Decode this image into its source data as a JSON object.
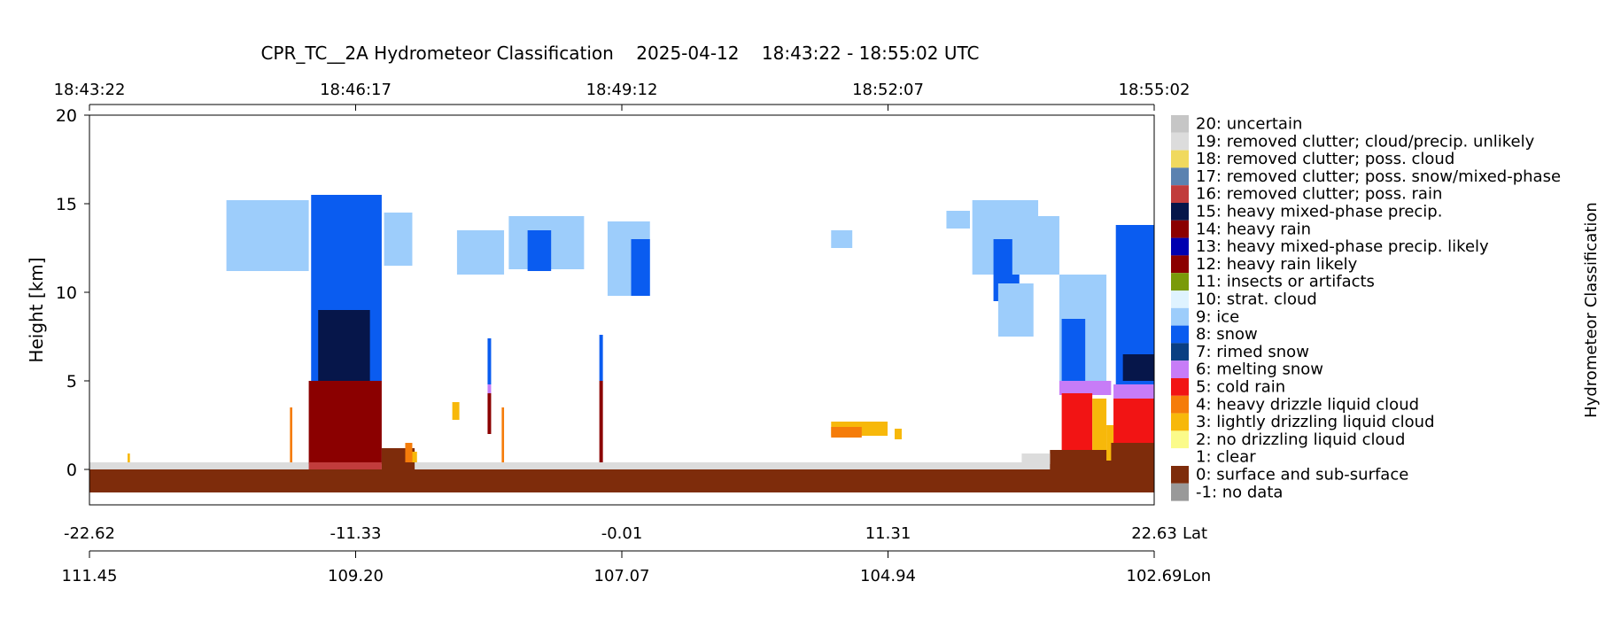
{
  "chart_data": {
    "type": "heatmap",
    "title": "CPR_TC__2A Hydrometeor Classification    2025-04-12    18:43:22 - 18:55:02 UTC",
    "ylabel": "Height [km]",
    "ylim": [
      -2,
      20
    ],
    "yticks": [
      0,
      5,
      10,
      15,
      20
    ],
    "top_axis": {
      "ticks": [
        "18:43:22",
        "18:46:17",
        "18:49:12",
        "18:52:07",
        "18:55:02"
      ]
    },
    "lat_axis": {
      "label": "Lat",
      "ticks": [
        "-22.62",
        "-11.33",
        "-0.01",
        "11.31",
        "22.63"
      ]
    },
    "lon_axis": {
      "label": "Lon",
      "ticks": [
        "111.45",
        "109.20",
        "107.07",
        "104.94",
        "102.69"
      ]
    },
    "colorbar_label": "Hydrometeor Classification",
    "x_range": [
      -22.62,
      22.63
    ],
    "classes": [
      {
        "code": 20,
        "label": "20: uncertain",
        "color": "#c6c6c6"
      },
      {
        "code": 19,
        "label": "19: removed clutter; cloud/precip. unlikely",
        "color": "#dcdcdc"
      },
      {
        "code": 18,
        "label": "18: removed clutter; poss. cloud",
        "color": "#f0d95e"
      },
      {
        "code": 17,
        "label": "17: removed clutter; poss. snow/mixed-phase",
        "color": "#5b82b0"
      },
      {
        "code": 16,
        "label": "16: removed clutter; poss. rain",
        "color": "#c13c3c"
      },
      {
        "code": 15,
        "label": "15: heavy mixed-phase precip.",
        "color": "#06164a"
      },
      {
        "code": 14,
        "label": "14: heavy rain",
        "color": "#8b0000"
      },
      {
        "code": 13,
        "label": "13: heavy mixed-phase precip. likely",
        "color": "#0000b0"
      },
      {
        "code": 12,
        "label": "12: heavy rain likely",
        "color": "#8b0000"
      },
      {
        "code": 11,
        "label": "11: insects or artifacts",
        "color": "#7a9a0a"
      },
      {
        "code": 10,
        "label": "10: strat. cloud",
        "color": "#dff3ff"
      },
      {
        "code": 9,
        "label": "9: ice",
        "color": "#9dcdfb"
      },
      {
        "code": 8,
        "label": "8: snow",
        "color": "#0a5cf0"
      },
      {
        "code": 7,
        "label": "7: rimed snow",
        "color": "#0a3f82"
      },
      {
        "code": 6,
        "label": "6: melting snow",
        "color": "#c77cf7"
      },
      {
        "code": 5,
        "label": "5: cold rain",
        "color": "#f21414"
      },
      {
        "code": 4,
        "label": "4: heavy drizzle liquid cloud",
        "color": "#f57c0a"
      },
      {
        "code": 3,
        "label": "3: lightly drizzling liquid cloud",
        "color": "#f7b80a"
      },
      {
        "code": 2,
        "label": "2: no drizzling liquid cloud",
        "color": "#fbfb8a"
      },
      {
        "code": 1,
        "label": "1: clear",
        "color": "#ffffff"
      },
      {
        "code": 0,
        "label": "0: surface and sub-surface",
        "color": "#7e2c0b"
      },
      {
        "code": -1,
        "label": "-1: no data",
        "color": "#999999"
      }
    ],
    "regions": [
      {
        "cls": 19,
        "x0": -22.62,
        "x1": 22.63,
        "y0": -0.2,
        "y1": 0.4
      },
      {
        "cls": 0,
        "x0": -22.62,
        "x1": 22.63,
        "y0": -1.3,
        "y1": 0.0
      },
      {
        "cls": 9,
        "x0": -16.8,
        "x1": -13.3,
        "y0": 11.2,
        "y1": 15.2
      },
      {
        "cls": 8,
        "x0": -13.2,
        "x1": -10.2,
        "y0": 5.0,
        "y1": 15.5
      },
      {
        "cls": 9,
        "x0": -10.1,
        "x1": -8.9,
        "y0": 11.5,
        "y1": 14.5
      },
      {
        "cls": 15,
        "x0": -12.9,
        "x1": -10.7,
        "y0": 5.0,
        "y1": 9.0
      },
      {
        "cls": 14,
        "x0": -13.3,
        "x1": -10.2,
        "y0": 0.3,
        "y1": 5.0
      },
      {
        "cls": 16,
        "x0": -13.3,
        "x1": -10.2,
        "y0": 0.0,
        "y1": 0.4
      },
      {
        "cls": 0,
        "x0": -10.2,
        "x1": -8.8,
        "y0": 0.0,
        "y1": 1.2
      },
      {
        "cls": 9,
        "x0": -7.0,
        "x1": -5.0,
        "y0": 11.0,
        "y1": 13.5
      },
      {
        "cls": 9,
        "x0": -4.8,
        "x1": -1.6,
        "y0": 11.3,
        "y1": 14.3
      },
      {
        "cls": 8,
        "x0": -4.0,
        "x1": -3.0,
        "y0": 11.2,
        "y1": 13.5
      },
      {
        "cls": 9,
        "x0": -0.6,
        "x1": 1.2,
        "y0": 9.8,
        "y1": 14.0
      },
      {
        "cls": 8,
        "x0": 0.4,
        "x1": 1.2,
        "y0": 9.8,
        "y1": 13.0
      },
      {
        "cls": 8,
        "x0": -5.7,
        "x1": -5.55,
        "y0": 4.8,
        "y1": 7.4
      },
      {
        "cls": 6,
        "x0": -5.7,
        "x1": -5.55,
        "y0": 4.3,
        "y1": 4.8
      },
      {
        "cls": 14,
        "x0": -5.7,
        "x1": -5.55,
        "y0": 2.0,
        "y1": 4.3
      },
      {
        "cls": 8,
        "x0": -0.95,
        "x1": -0.8,
        "y0": 5.0,
        "y1": 7.6
      },
      {
        "cls": 14,
        "x0": -0.95,
        "x1": -0.8,
        "y0": 0.4,
        "y1": 5.0
      },
      {
        "cls": 3,
        "x0": -7.2,
        "x1": -6.9,
        "y0": 2.8,
        "y1": 3.8
      },
      {
        "cls": 4,
        "x0": -9.2,
        "x1": -8.9,
        "y0": 0.4,
        "y1": 1.5
      },
      {
        "cls": 3,
        "x0": -8.9,
        "x1": -8.7,
        "y0": 0.4,
        "y1": 1.0
      },
      {
        "cls": 4,
        "x0": -14.1,
        "x1": -14.0,
        "y0": 0.4,
        "y1": 3.5
      },
      {
        "cls": 4,
        "x0": -5.1,
        "x1": -5.0,
        "y0": 0.4,
        "y1": 3.5
      },
      {
        "cls": 3,
        "x0": -21.0,
        "x1": -20.9,
        "y0": 0.4,
        "y1": 0.9
      },
      {
        "cls": 3,
        "x0": 8.9,
        "x1": 11.3,
        "y0": 1.9,
        "y1": 2.7
      },
      {
        "cls": 4,
        "x0": 8.9,
        "x1": 10.2,
        "y0": 1.8,
        "y1": 2.4
      },
      {
        "cls": 3,
        "x0": 11.6,
        "x1": 11.9,
        "y0": 1.7,
        "y1": 2.3
      },
      {
        "cls": 9,
        "x0": 8.9,
        "x1": 9.8,
        "y0": 12.5,
        "y1": 13.5
      },
      {
        "cls": 9,
        "x0": 13.8,
        "x1": 14.8,
        "y0": 13.6,
        "y1": 14.6
      },
      {
        "cls": 9,
        "x0": 14.9,
        "x1": 17.7,
        "y0": 11.0,
        "y1": 15.2
      },
      {
        "cls": 8,
        "x0": 15.8,
        "x1": 16.9,
        "y0": 9.5,
        "y1": 13.0
      },
      {
        "cls": 9,
        "x0": 16.0,
        "x1": 17.5,
        "y0": 7.5,
        "y1": 10.5
      },
      {
        "cls": 9,
        "x0": 16.6,
        "x1": 18.6,
        "y0": 11.0,
        "y1": 14.3
      },
      {
        "cls": 9,
        "x0": 18.6,
        "x1": 20.6,
        "y0": 5.0,
        "y1": 11.0
      },
      {
        "cls": 8,
        "x0": 18.7,
        "x1": 19.7,
        "y0": 5.0,
        "y1": 8.5
      },
      {
        "cls": 6,
        "x0": 18.6,
        "x1": 20.8,
        "y0": 4.2,
        "y1": 5.0
      },
      {
        "cls": 5,
        "x0": 18.7,
        "x1": 20.0,
        "y0": 1.0,
        "y1": 4.3
      },
      {
        "cls": 3,
        "x0": 20.0,
        "x1": 20.6,
        "y0": 1.0,
        "y1": 4.0
      },
      {
        "cls": 0,
        "x0": 18.2,
        "x1": 22.63,
        "y0": 0.0,
        "y1": 1.1
      },
      {
        "cls": 19,
        "x0": 17.0,
        "x1": 18.2,
        "y0": 0.3,
        "y1": 0.9
      },
      {
        "cls": 8,
        "x0": 21.0,
        "x1": 22.63,
        "y0": 4.8,
        "y1": 13.8
      },
      {
        "cls": 15,
        "x0": 21.3,
        "x1": 22.63,
        "y0": 5.0,
        "y1": 6.5
      },
      {
        "cls": 6,
        "x0": 20.9,
        "x1": 22.63,
        "y0": 4.0,
        "y1": 4.8
      },
      {
        "cls": 5,
        "x0": 20.9,
        "x1": 22.63,
        "y0": 0.6,
        "y1": 4.0
      },
      {
        "cls": 3,
        "x0": 20.6,
        "x1": 20.9,
        "y0": 0.5,
        "y1": 2.5
      },
      {
        "cls": 0,
        "x0": 20.8,
        "x1": 22.63,
        "y0": 0.0,
        "y1": 1.5
      }
    ]
  }
}
